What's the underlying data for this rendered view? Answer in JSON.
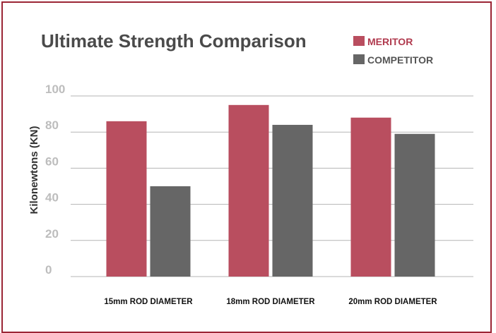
{
  "chart_data": {
    "type": "bar",
    "title": "Ultimate Strength Comparison",
    "ylabel": "Kilonewtons (KN)",
    "xlabel": "",
    "ylim": [
      0,
      100
    ],
    "yticks": [
      "0",
      "20",
      "40",
      "60",
      "80",
      "100"
    ],
    "grid": true,
    "legend": "top-right",
    "categories": [
      "15mm ROD DIAMETER",
      "18mm ROD DIAMETER",
      "20mm ROD DIAMETER"
    ],
    "series": [
      {
        "name": "MERITOR",
        "values": [
          86,
          95,
          88
        ],
        "color": "#b94e5f",
        "label_color": "#b03a4e"
      },
      {
        "name": "COMPETITOR",
        "values": [
          50,
          84,
          79
        ],
        "color": "#666666",
        "label_color": "#555555"
      }
    ]
  },
  "colors": {
    "border": "#9b2535",
    "grid": "#b5b5b5"
  }
}
